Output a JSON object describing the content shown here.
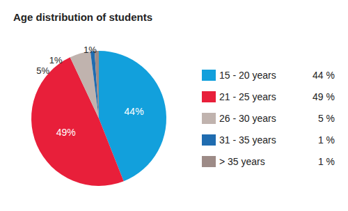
{
  "chart_data": {
    "type": "pie",
    "title": "Age distribution of students",
    "categories": [
      "15 - 20 years",
      "21 - 25 years",
      "26 - 30 years",
      "31 - 35 years",
      "> 35 years"
    ],
    "values": [
      44,
      49,
      5,
      1,
      1
    ],
    "value_labels": [
      "44%",
      "49%",
      "5%",
      "1%",
      "1%"
    ],
    "legend_value_labels": [
      "44 %",
      "49 %",
      "5 %",
      "1 %",
      "1 %"
    ],
    "colors": [
      "#12a0dc",
      "#e81f3a",
      "#c0b3ae",
      "#1f6cb0",
      "#9d8b87"
    ],
    "data_labels": true,
    "legend": "right"
  }
}
